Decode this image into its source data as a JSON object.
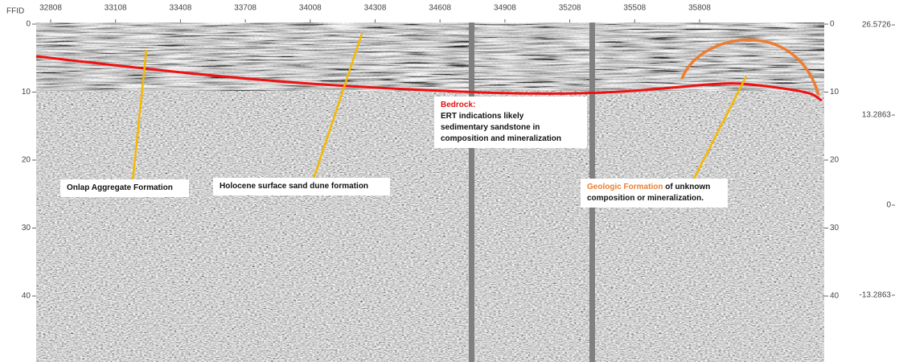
{
  "axis": {
    "x_label": "FFID",
    "x_ticks": [
      "32808",
      "33108",
      "33408",
      "33708",
      "34008",
      "34308",
      "34608",
      "34908",
      "35208",
      "35508",
      "35808"
    ],
    "y_ticks_left": [
      "0",
      "10",
      "20",
      "30",
      "40"
    ],
    "y_ticks_right": [
      "0",
      "10",
      "20",
      "30",
      "40"
    ],
    "scale_ticks": [
      "26.5726",
      "13.2863",
      "0",
      "-13.2863"
    ]
  },
  "annotations": [
    {
      "text": "Onlap Aggregate Formation"
    },
    {
      "text": "Holocene surface sand dune formation"
    },
    {
      "title": "Bedrock:",
      "lines": [
        "ERT indications likely",
        "sedimentary sandstone in",
        "composition and mineralization"
      ]
    },
    {
      "highlight": "Geologic Formation",
      "lines": [
        "of unknown",
        "composition or mineralization."
      ]
    }
  ]
}
